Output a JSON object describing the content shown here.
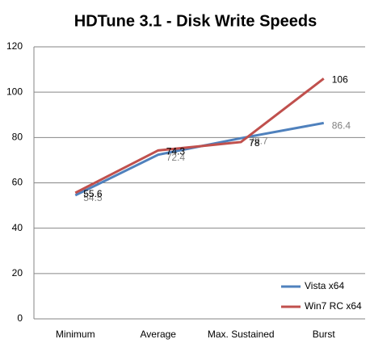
{
  "chart_data": {
    "type": "line",
    "title": "HDTune 3.1 - Disk Write Speeds",
    "categories": [
      "Minimum",
      "Average",
      "Max. Sustained",
      "Burst"
    ],
    "series": [
      {
        "name": "Vista x64",
        "color": "#4f81bd",
        "values": [
          54.5,
          72.4,
          79.7,
          86.4
        ],
        "label_color": "#808080"
      },
      {
        "name": "Win7 RC x64",
        "color": "#c0504d",
        "values": [
          55.6,
          74.3,
          78,
          106
        ],
        "label_color": "#000000"
      }
    ],
    "ylim": [
      0,
      120
    ],
    "yticks": [
      0,
      20,
      40,
      60,
      80,
      100,
      120
    ],
    "grid": true,
    "legend": "bottom-right"
  }
}
